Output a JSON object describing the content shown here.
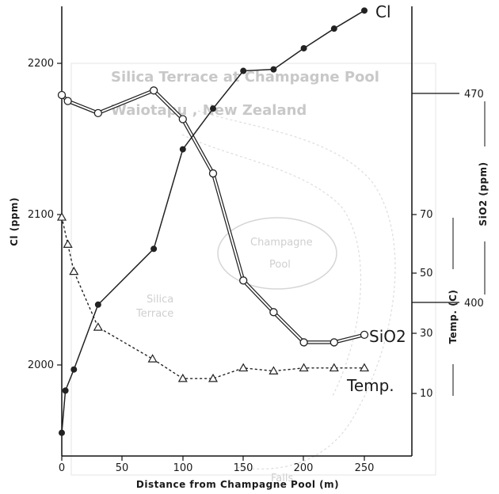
{
  "chart_data": {
    "type": "line",
    "xlabel": "Distance from Champagne Pool (m)",
    "xlim": [
      0,
      290
    ],
    "x_ticks": [
      "0",
      "50",
      "100",
      "150",
      "200",
      "250"
    ],
    "axes": {
      "cl": {
        "label": "Cl (ppm)",
        "ylim": [
          1950,
          2220
        ],
        "ticks": [
          "2000",
          "2100",
          "2200"
        ]
      },
      "temp": {
        "label": "Temp. (C)",
        "ticks": [
          "10",
          "30",
          "50",
          "70"
        ]
      },
      "sio2": {
        "label": "SiO2 (ppm)",
        "ticks": [
          "400",
          "470"
        ]
      }
    },
    "series": [
      {
        "name": "Cl",
        "marker": "filled-circle",
        "line": "solid",
        "x": [
          0,
          3,
          10,
          30,
          76,
          100,
          125,
          150,
          175,
          200,
          225,
          250
        ],
        "y": [
          1955,
          1983,
          1997,
          2040,
          2077,
          2143,
          2170,
          2195,
          2196,
          2210,
          2223,
          2235
        ]
      },
      {
        "name": "SiO2",
        "marker": "open-circle",
        "line": "double",
        "x": [
          0,
          5,
          30,
          76,
          100,
          125,
          150,
          175,
          200,
          225,
          250
        ],
        "y": [
          2179,
          2175,
          2167,
          2182,
          2163,
          2127,
          2056,
          2035,
          2015,
          2015,
          2020
        ]
      },
      {
        "name": "Temp.",
        "marker": "open-triangle",
        "line": "dotted",
        "x": [
          0,
          5,
          10,
          30,
          75,
          100,
          125,
          150,
          175,
          200,
          225,
          250
        ],
        "y": [
          2098,
          2080,
          2062,
          2025,
          2004,
          1991,
          1991,
          1998,
          1996,
          1998,
          1998,
          1998
        ]
      }
    ],
    "series_labels": [
      "Cl",
      "SiO2",
      "Temp."
    ],
    "background_text": [
      "Silica Terrace at Champagne Pool",
      "Waiotapu , New Zealand",
      "Champagne",
      "Pool",
      "Silica",
      "Terrace",
      "Falls"
    ]
  }
}
